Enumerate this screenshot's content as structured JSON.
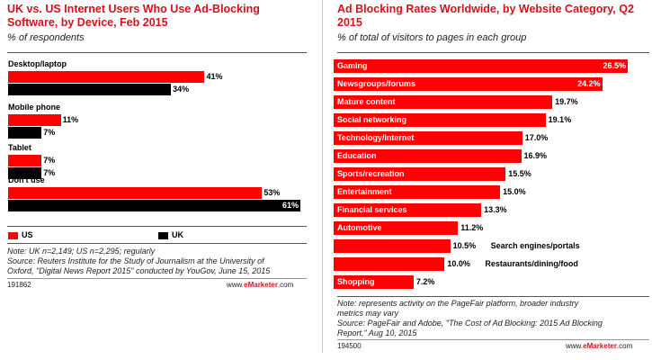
{
  "left_panel": {
    "title": "UK vs. US Internet Users Who Use Ad-Blocking Software, by Device, Feb 2015",
    "subtitle": "% of respondents",
    "legend": [
      {
        "name": "US",
        "color": "#ff0000"
      },
      {
        "name": "UK",
        "color": "#000000"
      }
    ],
    "note_lines": [
      "Note: UK n=2,149; US n=2,295; regularly",
      "Source: Reuters Institute for the Study of Journalism at the University of",
      "Oxford, \"Digital News Report 2015\" conducted by YouGov, June 15, 2015"
    ],
    "code": "191862",
    "brand_prefix": "www.",
    "brand_name": "eMarketer",
    "brand_suffix": ".com"
  },
  "right_panel": {
    "title": "Ad Blocking Rates Worldwide, by Website Category, Q2 2015",
    "subtitle": "% of total of visitors to pages in each group",
    "note_lines": [
      "Note: represents activity on the PageFair platform, broader industry",
      "metrics may vary",
      "Source: PageFair and Adobe, \"The Cost of Ad Blocking: 2015 Ad Blocking",
      "Report,\" Aug 10, 2015"
    ],
    "code": "194500",
    "brand_prefix": "www.",
    "brand_name": "eMarketer",
    "brand_suffix": ".com"
  },
  "chart_data": [
    {
      "type": "bar",
      "orientation": "horizontal",
      "title": "UK vs. US Internet Users Who Use Ad-Blocking Software, by Device, Feb 2015",
      "subtitle": "% of respondents",
      "categories": [
        "Desktop/laptop",
        "Mobile phone",
        "Tablet",
        "Don't use"
      ],
      "series": [
        {
          "name": "US",
          "color": "#ff0000",
          "values": [
            41,
            11,
            7,
            53
          ]
        },
        {
          "name": "UK",
          "color": "#000000",
          "values": [
            34,
            7,
            7,
            61
          ]
        }
      ],
      "value_suffix": "%",
      "xlim": [
        0,
        61
      ],
      "grid": false,
      "legend_position": "bottom-left"
    },
    {
      "type": "bar",
      "orientation": "horizontal",
      "title": "Ad Blocking Rates Worldwide, by Website Category, Q2 2015",
      "subtitle": "% of total of visitors to pages in each group",
      "categories": [
        "Gaming",
        "Newsgroups/forums",
        "Mature content",
        "Social networking",
        "Technology/internet",
        "Education",
        "Sports/recreation",
        "Entertainment",
        "Financial services",
        "Automotive",
        "Search engines/portals",
        "Restaurants/dining/food",
        "Shopping"
      ],
      "values": [
        26.5,
        24.2,
        19.7,
        19.1,
        17.0,
        16.9,
        15.5,
        15.0,
        13.3,
        11.2,
        10.5,
        10.0,
        7.2
      ],
      "value_labels": [
        "26.5%",
        "24.2%",
        "19.7%",
        "19.1%",
        "17.0%",
        "16.9%",
        "15.5%",
        "15.0%",
        "13.3%",
        "11.2%",
        "10.5%",
        "10.0%",
        "7.2%"
      ],
      "color": "#ff0000",
      "xlim": [
        0,
        26.5
      ],
      "grid": false
    }
  ]
}
